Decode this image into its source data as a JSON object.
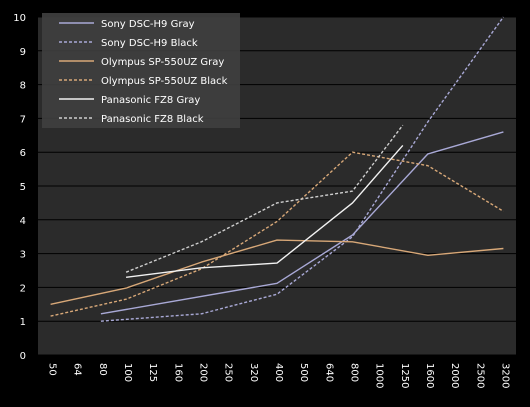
{
  "chart_data": {
    "type": "line",
    "background": "#000000",
    "plot_background": "#2b2b2b",
    "grid": true,
    "grid_color": "#000000",
    "ylim": [
      0,
      10
    ],
    "yticks": [
      "0",
      "1",
      "2",
      "3",
      "4",
      "5",
      "6",
      "7",
      "8",
      "9",
      "10"
    ],
    "categories": [
      "50",
      "64",
      "80",
      "100",
      "125",
      "160",
      "200",
      "250",
      "320",
      "400",
      "500",
      "640",
      "800",
      "1000",
      "1250",
      "1600",
      "2000",
      "2500",
      "3200"
    ],
    "legend_position": "top-left",
    "series": [
      {
        "name": "Sony DSC-H9 Gray",
        "color": "#a9a9d6",
        "dash": "solid",
        "points": [
          [
            "80",
            1.22
          ],
          [
            "400",
            2.12
          ],
          [
            "800",
            3.55
          ],
          [
            "1600",
            5.95
          ],
          [
            "3200",
            6.6
          ]
        ]
      },
      {
        "name": "Sony DSC-H9 Black",
        "color": "#a9a9d6",
        "dash": "dotted",
        "points": [
          [
            "80",
            1.0
          ],
          [
            "200",
            1.22
          ],
          [
            "400",
            1.8
          ],
          [
            "800",
            3.5
          ],
          [
            "1600",
            6.9
          ],
          [
            "3200",
            10.0
          ]
        ]
      },
      {
        "name": "Olympus SP-550UZ Gray",
        "color": "#d8a878",
        "dash": "solid",
        "points": [
          [
            "50",
            1.5
          ],
          [
            "100",
            1.98
          ],
          [
            "200",
            2.75
          ],
          [
            "400",
            3.4
          ],
          [
            "800",
            3.35
          ],
          [
            "1600",
            2.95
          ],
          [
            "3200",
            3.15
          ]
        ]
      },
      {
        "name": "Olympus SP-550UZ Black",
        "color": "#d8a878",
        "dash": "dotted",
        "points": [
          [
            "50",
            1.15
          ],
          [
            "100",
            1.65
          ],
          [
            "200",
            2.55
          ],
          [
            "400",
            3.95
          ],
          [
            "800",
            6.0
          ],
          [
            "1600",
            5.6
          ],
          [
            "3200",
            4.25
          ]
        ]
      },
      {
        "name": "Panasonic FZ8 Gray",
        "color": "#f2f2f2",
        "dash": "solid",
        "points": [
          [
            "100",
            2.3
          ],
          [
            "200",
            2.58
          ],
          [
            "400",
            2.72
          ],
          [
            "800",
            4.5
          ],
          [
            "1250",
            6.2
          ]
        ]
      },
      {
        "name": "Panasonic FZ8 Black",
        "color": "#cfcfcf",
        "dash": "dotted",
        "points": [
          [
            "100",
            2.45
          ],
          [
            "200",
            3.35
          ],
          [
            "400",
            4.5
          ],
          [
            "800",
            4.85
          ],
          [
            "1250",
            6.8
          ]
        ]
      }
    ]
  }
}
